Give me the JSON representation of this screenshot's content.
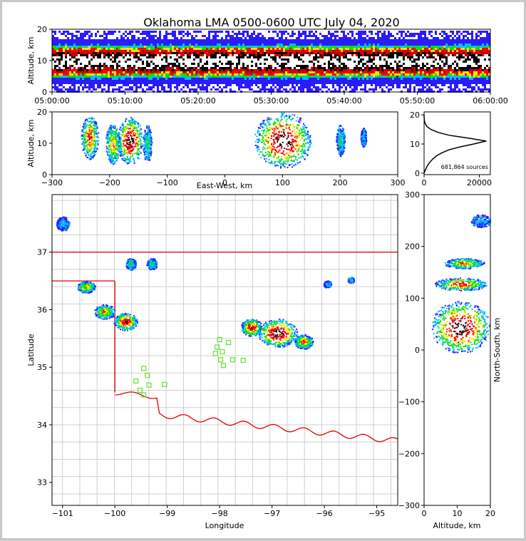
{
  "chart_data": {
    "type": "heatmap",
    "title": "Oklahoma LMA 0500-0600 UTC July 04, 2020",
    "colormap": [
      "#2b1cff",
      "#00c0ff",
      "#00e000",
      "#ffe000",
      "#ff0000",
      "#cc0000",
      "#000000",
      "#ffffff"
    ],
    "time_height": {
      "ylabel": "Altitude, km",
      "ylim": [
        0,
        20
      ],
      "yticks": [
        "0",
        "10",
        "20"
      ],
      "xticks": [
        "05:00:00",
        "05:10:00",
        "05:20:00",
        "05:30:00",
        "05:40:00",
        "05:50:00",
        "06:00:00"
      ],
      "core_altitude_km": [
        5,
        15
      ]
    },
    "ew_height": {
      "xlabel": "East-West, km",
      "ylabel": "Altitude, km",
      "xlim": [
        -300,
        300
      ],
      "ylim": [
        0,
        20
      ],
      "xticks": [
        "−300",
        "−200",
        "−100",
        "0",
        "100",
        "200",
        "300"
      ],
      "yticks": [
        "0",
        "10",
        "20"
      ],
      "cells": [
        {
          "x": -235,
          "z": 12,
          "w": 30,
          "h": 14,
          "level": 5
        },
        {
          "x": -195,
          "z": 10,
          "w": 25,
          "h": 13,
          "level": 4
        },
        {
          "x": -165,
          "z": 11,
          "w": 45,
          "h": 15,
          "level": 7
        },
        {
          "x": -135,
          "z": 10,
          "w": 15,
          "h": 12,
          "level": 2
        },
        {
          "x": 100,
          "z": 11,
          "w": 100,
          "h": 18,
          "level": 7
        },
        {
          "x": 200,
          "z": 11,
          "w": 15,
          "h": 10,
          "level": 2
        },
        {
          "x": 240,
          "z": 12,
          "w": 10,
          "h": 6,
          "level": 1
        }
      ]
    },
    "height_hist": {
      "xticks": [
        "0",
        "20000"
      ],
      "yticks": [
        "0",
        "10",
        "20"
      ],
      "xlim": [
        0,
        24000
      ],
      "ylim": [
        -0.5,
        21
      ],
      "note": "681,864 sources",
      "profile": [
        [
          0,
          0
        ],
        [
          1,
          400
        ],
        [
          2,
          900
        ],
        [
          3,
          1500
        ],
        [
          4,
          2300
        ],
        [
          5,
          3300
        ],
        [
          6,
          4600
        ],
        [
          7,
          6500
        ],
        [
          8,
          9000
        ],
        [
          9,
          13000
        ],
        [
          10,
          18000
        ],
        [
          11,
          22500
        ],
        [
          12,
          16000
        ],
        [
          13,
          9000
        ],
        [
          14,
          5000
        ],
        [
          15,
          2500
        ],
        [
          16,
          1000
        ],
        [
          17,
          400
        ],
        [
          18,
          120
        ],
        [
          19,
          30
        ],
        [
          20,
          0
        ]
      ]
    },
    "plan": {
      "xlabel": "Longitude",
      "ylabel": "Latitude",
      "xlim": [
        -101.2,
        -94.6
      ],
      "ylim": [
        32.6,
        38.0
      ],
      "xticks": [
        "−101",
        "−100",
        "−99",
        "−98",
        "−97",
        "−96",
        "−95"
      ],
      "yticks": [
        "33",
        "34",
        "35",
        "36",
        "37"
      ],
      "cells": [
        {
          "lon": -101.0,
          "lat": 37.5,
          "w": 0.25,
          "h": 0.25,
          "level": 1
        },
        {
          "lon": -99.7,
          "lat": 36.8,
          "w": 0.2,
          "h": 0.2,
          "level": 2
        },
        {
          "lon": -99.3,
          "lat": 36.8,
          "w": 0.2,
          "h": 0.2,
          "level": 2
        },
        {
          "lon": -100.55,
          "lat": 36.4,
          "w": 0.35,
          "h": 0.2,
          "level": 4
        },
        {
          "lon": -100.2,
          "lat": 35.97,
          "w": 0.4,
          "h": 0.25,
          "level": 4
        },
        {
          "lon": -99.8,
          "lat": 35.8,
          "w": 0.45,
          "h": 0.3,
          "level": 6
        },
        {
          "lon": -97.4,
          "lat": 35.7,
          "w": 0.4,
          "h": 0.3,
          "level": 6
        },
        {
          "lon": -96.9,
          "lat": 35.6,
          "w": 0.75,
          "h": 0.5,
          "level": 7
        },
        {
          "lon": -96.4,
          "lat": 35.45,
          "w": 0.35,
          "h": 0.25,
          "level": 5
        },
        {
          "lon": -95.95,
          "lat": 36.45,
          "w": 0.15,
          "h": 0.12,
          "level": 1
        },
        {
          "lon": -95.5,
          "lat": 36.52,
          "w": 0.12,
          "h": 0.1,
          "level": 1
        }
      ],
      "stations": [
        [
          -98.0,
          35.48
        ],
        [
          -98.05,
          35.35
        ],
        [
          -97.95,
          35.27
        ],
        [
          -98.08,
          35.24
        ],
        [
          -97.83,
          35.43
        ],
        [
          -97.75,
          35.13
        ],
        [
          -97.55,
          35.12
        ],
        [
          -97.98,
          35.13
        ],
        [
          -97.93,
          35.03
        ],
        [
          -99.45,
          34.98
        ],
        [
          -99.38,
          34.86
        ],
        [
          -99.6,
          34.76
        ],
        [
          -99.35,
          34.69
        ],
        [
          -99.05,
          34.7
        ],
        [
          -99.52,
          34.6
        ],
        [
          -99.45,
          34.52
        ]
      ]
    },
    "ns_height": {
      "xlabel": "Altitude, km",
      "ylabel": "North-South, km",
      "xlim": [
        0,
        20
      ],
      "ylim": [
        -300,
        300
      ],
      "xticks": [
        "0",
        "10",
        "20"
      ],
      "yticks": [
        "300",
        "200",
        "100",
        "0",
        "−100",
        "−200",
        "−300"
      ],
      "cells": [
        {
          "z": 11,
          "y": 45,
          "w": 18,
          "h": 100,
          "level": 7
        },
        {
          "z": 11,
          "y": 128,
          "w": 16,
          "h": 25,
          "level": 5
        },
        {
          "z": 12,
          "y": 168,
          "w": 12,
          "h": 20,
          "level": 4
        },
        {
          "z": 17,
          "y": 250,
          "w": 6,
          "h": 25,
          "level": 1
        }
      ]
    }
  }
}
